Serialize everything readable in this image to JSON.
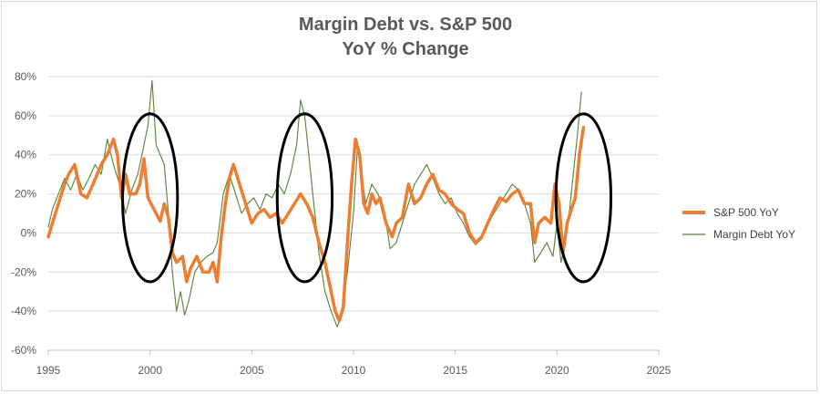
{
  "chart_data": {
    "type": "line",
    "title": "Margin Debt vs. S&P 500",
    "subtitle": "YoY % Change",
    "xlabel": "",
    "ylabel": "",
    "xlim": [
      1995,
      2025
    ],
    "ylim": [
      -60,
      80
    ],
    "x_ticks": [
      1995,
      2000,
      2005,
      2010,
      2015,
      2020,
      2025
    ],
    "y_ticks": [
      -60,
      -40,
      -20,
      0,
      20,
      40,
      60,
      80
    ],
    "y_tick_labels": [
      "-60%",
      "-40%",
      "-20%",
      "0%",
      "20%",
      "40%",
      "60%",
      "80%"
    ],
    "x_tick_labels": [
      "1995",
      "2000",
      "2005",
      "2010",
      "2015",
      "2020",
      "2025"
    ],
    "grid": "horizontal",
    "legend_position": "right",
    "series": [
      {
        "name": "S&P 500 YoY",
        "color": "#ED7D31",
        "style": "thick",
        "points": [
          [
            1995.0,
            -2
          ],
          [
            1995.2,
            5
          ],
          [
            1995.5,
            15
          ],
          [
            1995.8,
            25
          ],
          [
            1996.0,
            30
          ],
          [
            1996.3,
            35
          ],
          [
            1996.6,
            20
          ],
          [
            1996.9,
            18
          ],
          [
            1997.2,
            25
          ],
          [
            1997.6,
            35
          ],
          [
            1997.9,
            40
          ],
          [
            1998.2,
            48
          ],
          [
            1998.4,
            40
          ],
          [
            1998.6,
            18
          ],
          [
            1998.8,
            30
          ],
          [
            1999.0,
            20
          ],
          [
            1999.3,
            20
          ],
          [
            1999.5,
            25
          ],
          [
            1999.7,
            38
          ],
          [
            1999.9,
            18
          ],
          [
            2000.2,
            12
          ],
          [
            2000.5,
            6
          ],
          [
            2000.7,
            15
          ],
          [
            2000.9,
            8
          ],
          [
            2001.1,
            -10
          ],
          [
            2001.3,
            -15
          ],
          [
            2001.6,
            -12
          ],
          [
            2001.8,
            -25
          ],
          [
            2002.0,
            -18
          ],
          [
            2002.3,
            -12
          ],
          [
            2002.6,
            -20
          ],
          [
            2002.9,
            -20
          ],
          [
            2003.1,
            -15
          ],
          [
            2003.3,
            -25
          ],
          [
            2003.5,
            -2
          ],
          [
            2003.7,
            15
          ],
          [
            2003.9,
            28
          ],
          [
            2004.1,
            35
          ],
          [
            2004.4,
            25
          ],
          [
            2004.7,
            15
          ],
          [
            2005.0,
            5
          ],
          [
            2005.3,
            10
          ],
          [
            2005.6,
            12
          ],
          [
            2005.9,
            8
          ],
          [
            2006.2,
            10
          ],
          [
            2006.5,
            5
          ],
          [
            2006.8,
            10
          ],
          [
            2007.1,
            15
          ],
          [
            2007.4,
            20
          ],
          [
            2007.7,
            15
          ],
          [
            2008.0,
            8
          ],
          [
            2008.3,
            -5
          ],
          [
            2008.6,
            -15
          ],
          [
            2008.9,
            -30
          ],
          [
            2009.1,
            -40
          ],
          [
            2009.3,
            -45
          ],
          [
            2009.5,
            -38
          ],
          [
            2009.7,
            -5
          ],
          [
            2009.9,
            25
          ],
          [
            2010.1,
            48
          ],
          [
            2010.3,
            40
          ],
          [
            2010.5,
            15
          ],
          [
            2010.7,
            10
          ],
          [
            2010.9,
            20
          ],
          [
            2011.1,
            15
          ],
          [
            2011.3,
            18
          ],
          [
            2011.6,
            5
          ],
          [
            2011.9,
            -2
          ],
          [
            2012.1,
            5
          ],
          [
            2012.4,
            8
          ],
          [
            2012.7,
            25
          ],
          [
            2013.0,
            15
          ],
          [
            2013.3,
            18
          ],
          [
            2013.6,
            25
          ],
          [
            2013.9,
            30
          ],
          [
            2014.2,
            22
          ],
          [
            2014.5,
            20
          ],
          [
            2014.8,
            15
          ],
          [
            2015.1,
            12
          ],
          [
            2015.4,
            10
          ],
          [
            2015.7,
            0
          ],
          [
            2016.0,
            -5
          ],
          [
            2016.3,
            -2
          ],
          [
            2016.6,
            5
          ],
          [
            2016.9,
            12
          ],
          [
            2017.2,
            18
          ],
          [
            2017.5,
            16
          ],
          [
            2017.8,
            20
          ],
          [
            2018.1,
            22
          ],
          [
            2018.4,
            15
          ],
          [
            2018.7,
            15
          ],
          [
            2018.9,
            -5
          ],
          [
            2019.1,
            5
          ],
          [
            2019.4,
            8
          ],
          [
            2019.7,
            5
          ],
          [
            2019.9,
            25
          ],
          [
            2020.1,
            15
          ],
          [
            2020.3,
            -10
          ],
          [
            2020.5,
            5
          ],
          [
            2020.7,
            12
          ],
          [
            2020.9,
            18
          ],
          [
            2021.1,
            40
          ],
          [
            2021.3,
            54
          ]
        ]
      },
      {
        "name": "Margin Debt YoY",
        "color": "#548235",
        "style": "thin",
        "points": [
          [
            1995.0,
            3
          ],
          [
            1995.2,
            12
          ],
          [
            1995.5,
            20
          ],
          [
            1995.8,
            28
          ],
          [
            1996.1,
            22
          ],
          [
            1996.4,
            30
          ],
          [
            1996.7,
            22
          ],
          [
            1997.0,
            28
          ],
          [
            1997.3,
            35
          ],
          [
            1997.6,
            30
          ],
          [
            1997.9,
            48
          ],
          [
            1998.2,
            35
          ],
          [
            1998.5,
            25
          ],
          [
            1998.8,
            10
          ],
          [
            1999.1,
            22
          ],
          [
            1999.4,
            30
          ],
          [
            1999.7,
            45
          ],
          [
            1999.9,
            55
          ],
          [
            2000.1,
            78
          ],
          [
            2000.3,
            45
          ],
          [
            2000.5,
            40
          ],
          [
            2000.7,
            35
          ],
          [
            2000.9,
            10
          ],
          [
            2001.1,
            -20
          ],
          [
            2001.3,
            -40
          ],
          [
            2001.5,
            -30
          ],
          [
            2001.7,
            -42
          ],
          [
            2001.9,
            -35
          ],
          [
            2002.2,
            -20
          ],
          [
            2002.5,
            -15
          ],
          [
            2002.8,
            -12
          ],
          [
            2003.1,
            -10
          ],
          [
            2003.3,
            -5
          ],
          [
            2003.6,
            20
          ],
          [
            2003.9,
            30
          ],
          [
            2004.2,
            20
          ],
          [
            2004.5,
            10
          ],
          [
            2004.8,
            15
          ],
          [
            2005.1,
            18
          ],
          [
            2005.4,
            12
          ],
          [
            2005.7,
            20
          ],
          [
            2006.0,
            18
          ],
          [
            2006.3,
            25
          ],
          [
            2006.6,
            20
          ],
          [
            2006.9,
            30
          ],
          [
            2007.2,
            45
          ],
          [
            2007.4,
            68
          ],
          [
            2007.6,
            60
          ],
          [
            2007.8,
            40
          ],
          [
            2008.0,
            20
          ],
          [
            2008.3,
            -10
          ],
          [
            2008.6,
            -30
          ],
          [
            2008.9,
            -40
          ],
          [
            2009.2,
            -48
          ],
          [
            2009.4,
            -42
          ],
          [
            2009.7,
            -20
          ],
          [
            2010.0,
            10
          ],
          [
            2010.2,
            45
          ],
          [
            2010.4,
            30
          ],
          [
            2010.6,
            15
          ],
          [
            2010.9,
            25
          ],
          [
            2011.2,
            20
          ],
          [
            2011.5,
            12
          ],
          [
            2011.8,
            -8
          ],
          [
            2012.1,
            -5
          ],
          [
            2012.4,
            5
          ],
          [
            2012.7,
            15
          ],
          [
            2013.0,
            25
          ],
          [
            2013.3,
            30
          ],
          [
            2013.6,
            35
          ],
          [
            2013.9,
            28
          ],
          [
            2014.2,
            20
          ],
          [
            2014.5,
            15
          ],
          [
            2014.8,
            18
          ],
          [
            2015.1,
            10
          ],
          [
            2015.4,
            5
          ],
          [
            2015.7,
            -2
          ],
          [
            2016.0,
            -6
          ],
          [
            2016.3,
            -3
          ],
          [
            2016.6,
            5
          ],
          [
            2016.9,
            10
          ],
          [
            2017.2,
            15
          ],
          [
            2017.5,
            20
          ],
          [
            2017.8,
            25
          ],
          [
            2018.1,
            22
          ],
          [
            2018.4,
            15
          ],
          [
            2018.7,
            5
          ],
          [
            2018.9,
            -15
          ],
          [
            2019.2,
            -10
          ],
          [
            2019.5,
            -5
          ],
          [
            2019.8,
            -12
          ],
          [
            2020.0,
            5
          ],
          [
            2020.2,
            -15
          ],
          [
            2020.4,
            -5
          ],
          [
            2020.6,
            10
          ],
          [
            2020.8,
            30
          ],
          [
            2021.0,
            50
          ],
          [
            2021.2,
            72
          ]
        ]
      }
    ],
    "annotations": [
      {
        "type": "ellipse",
        "center_x": 2000.0,
        "center_y": 18,
        "rx_years": 1.35,
        "ry_percent": 43
      },
      {
        "type": "ellipse",
        "center_x": 2007.6,
        "center_y": 18,
        "rx_years": 1.35,
        "ry_percent": 43
      },
      {
        "type": "ellipse",
        "center_x": 2021.3,
        "center_y": 18,
        "rx_years": 1.35,
        "ry_percent": 43
      }
    ]
  }
}
